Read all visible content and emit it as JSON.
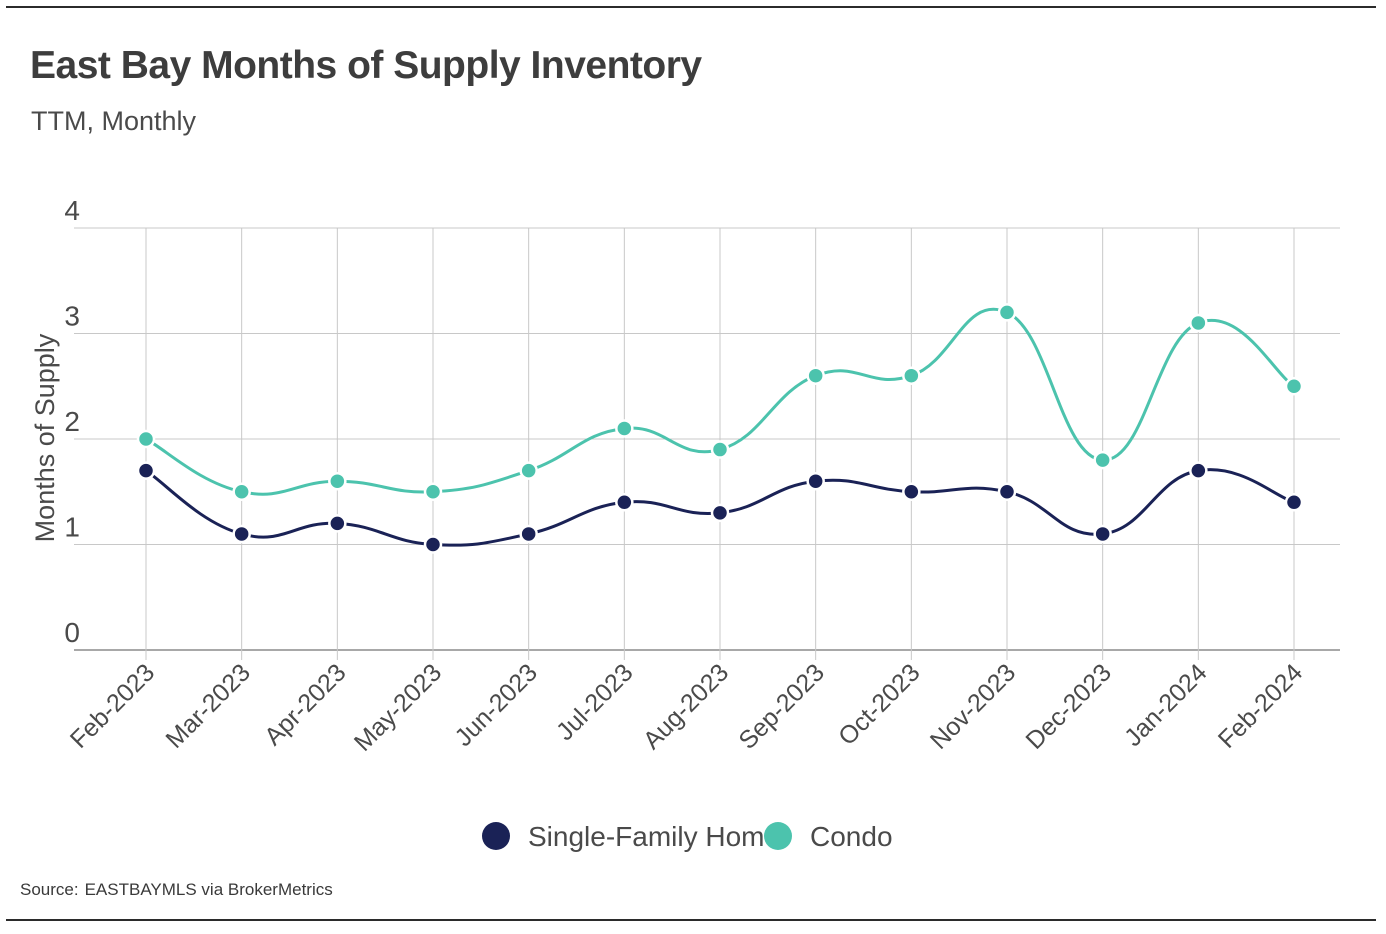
{
  "header": {
    "title": "East Bay Months of Supply Inventory",
    "subtitle": "TTM, Monthly"
  },
  "footer": {
    "source_label": "Source:",
    "source_text": "EASTBAYMLS via BrokerMetrics"
  },
  "colors": {
    "single_family": "#1a2256",
    "condo": "#4cc3ad",
    "grid": "#c8c8c8",
    "axis": "#8c8c8c",
    "text": "#4a4a4a"
  },
  "chart_data": {
    "type": "line",
    "title": "East Bay Months of Supply Inventory",
    "subtitle": "TTM, Monthly",
    "xlabel": "",
    "ylabel": "Months of Supply",
    "ylim": [
      0,
      4
    ],
    "yticks": [
      0,
      1,
      2,
      3,
      4
    ],
    "grid": true,
    "smooth": true,
    "legend_position": "bottom-center",
    "categories": [
      "Feb-2023",
      "Mar-2023",
      "Apr-2023",
      "May-2023",
      "Jun-2023",
      "Jul-2023",
      "Aug-2023",
      "Sep-2023",
      "Oct-2023",
      "Nov-2023",
      "Dec-2023",
      "Jan-2024",
      "Feb-2024"
    ],
    "series": [
      {
        "name": "Single-Family Home",
        "color": "#1a2256",
        "values": [
          1.7,
          1.1,
          1.2,
          1.0,
          1.1,
          1.4,
          1.3,
          1.6,
          1.5,
          1.5,
          1.1,
          1.7,
          1.4
        ]
      },
      {
        "name": "Condo",
        "color": "#4cc3ad",
        "values": [
          2.0,
          1.5,
          1.6,
          1.5,
          1.7,
          2.1,
          1.9,
          2.6,
          2.6,
          3.2,
          1.8,
          3.1,
          2.5
        ]
      }
    ]
  }
}
